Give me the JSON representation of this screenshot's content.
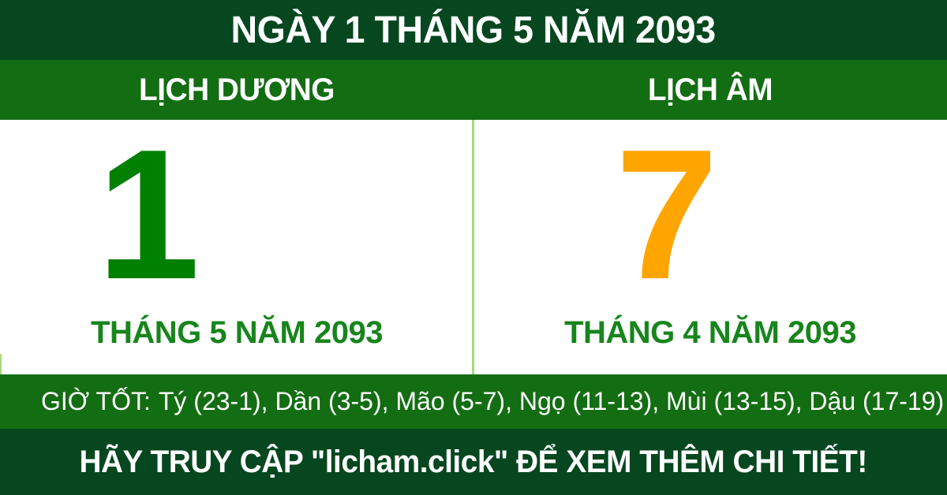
{
  "header": {
    "title": "NGÀY 1 THÁNG 5 NĂM 2093"
  },
  "calendar": {
    "solar": {
      "label": "LỊCH DƯƠNG",
      "day": "1",
      "month_label": "THÁNG 5 NĂM 2093"
    },
    "lunar": {
      "label": "LỊCH ÂM",
      "day": "7",
      "month_label": "THÁNG 4 NĂM 2093"
    }
  },
  "good_hours": {
    "label": "GIỜ TỐT:",
    "hours": [
      "Tý (23-1)",
      "Dần (3-5)",
      "Mão (5-7)",
      "Ngọ (11-13)",
      "Mùi (13-15)",
      "Dậu (17-19)"
    ],
    "hours_text": "Tý (23-1), Dần (3-5), Mão (5-7), Ngọ (11-13), Mùi (13-15), Dậu (17-19)"
  },
  "footer": {
    "text": "HÃY TRUY CẬP \"licham.click\" ĐỂ XEM THÊM CHI TIẾT!"
  },
  "colors": {
    "dark_green": "#06471F",
    "bar_green": "#136D12",
    "solar_day_green": "#008000",
    "lunar_day_orange": "#FFA502",
    "month_text_green": "#17851C",
    "divider_light_green": "#A8D87E",
    "text_white": "#FFFFFF"
  }
}
